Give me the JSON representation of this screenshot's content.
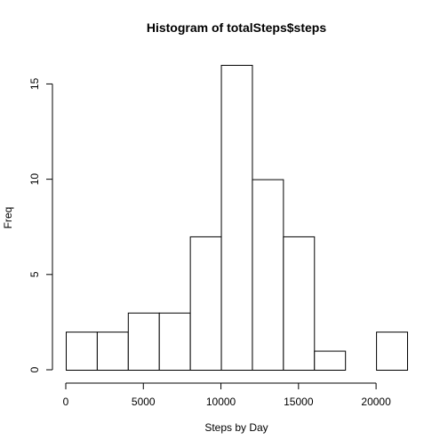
{
  "chart_data": {
    "type": "bar",
    "title": "Histogram of totalSteps$steps",
    "xlabel": "Steps by Day",
    "ylabel": "Freq",
    "bin_edges": [
      0,
      2000,
      4000,
      6000,
      8000,
      10000,
      12000,
      14000,
      16000,
      18000,
      20000,
      22000
    ],
    "values": [
      2,
      2,
      3,
      3,
      7,
      16,
      10,
      7,
      1,
      0,
      2
    ],
    "xlim": [
      0,
      22000
    ],
    "ylim": [
      0,
      16
    ],
    "xticks": [
      0,
      5000,
      10000,
      15000,
      20000
    ],
    "yticks": [
      0,
      5,
      10,
      15
    ],
    "grid": false,
    "bar_fill": "#ffffff",
    "bar_stroke": "#000000"
  }
}
